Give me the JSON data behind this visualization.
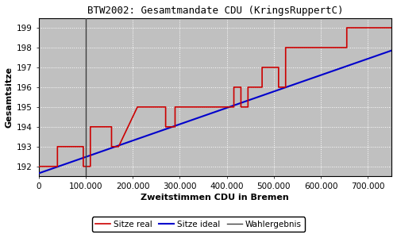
{
  "title": "BTW2002: Gesamtmandate CDU (KringsRuppertC)",
  "xlabel": "Zweitstimmen CDU in Bremen",
  "ylabel": "Gesamtsitze",
  "background_color": "#c0c0c0",
  "xlim": [
    0,
    750000
  ],
  "ylim": [
    191.5,
    199.5
  ],
  "yticks": [
    192,
    193,
    194,
    195,
    196,
    197,
    198,
    199
  ],
  "xticks": [
    0,
    100000,
    200000,
    300000,
    400000,
    500000,
    600000,
    700000
  ],
  "wahlergebnis_x": 100000,
  "ideal_start_x": 0,
  "ideal_start_y": 191.65,
  "ideal_end_x": 750000,
  "ideal_end_y": 197.85,
  "real_steps": [
    [
      0,
      192
    ],
    [
      40000,
      192
    ],
    [
      40001,
      193
    ],
    [
      95000,
      193
    ],
    [
      95001,
      192
    ],
    [
      110000,
      192
    ],
    [
      110001,
      194
    ],
    [
      155000,
      194
    ],
    [
      155001,
      193
    ],
    [
      170000,
      193
    ],
    [
      170001,
      193
    ],
    [
      210000,
      195
    ],
    [
      270000,
      195
    ],
    [
      270001,
      194
    ],
    [
      290000,
      194
    ],
    [
      290001,
      195
    ],
    [
      390000,
      195
    ],
    [
      390001,
      195
    ],
    [
      415000,
      195
    ],
    [
      415001,
      196
    ],
    [
      430000,
      196
    ],
    [
      430001,
      195
    ],
    [
      445000,
      195
    ],
    [
      445001,
      196
    ],
    [
      475000,
      196
    ],
    [
      475001,
      197
    ],
    [
      510000,
      197
    ],
    [
      510001,
      196
    ],
    [
      525000,
      196
    ],
    [
      525001,
      198
    ],
    [
      655000,
      198
    ],
    [
      655001,
      199
    ],
    [
      750000,
      199
    ]
  ],
  "line_color_real": "#cc0000",
  "line_color_ideal": "#0000cc",
  "line_color_wahlergebnis": "#404040",
  "legend_labels": [
    "Sitze real",
    "Sitze ideal",
    "Wahlergebnis"
  ]
}
